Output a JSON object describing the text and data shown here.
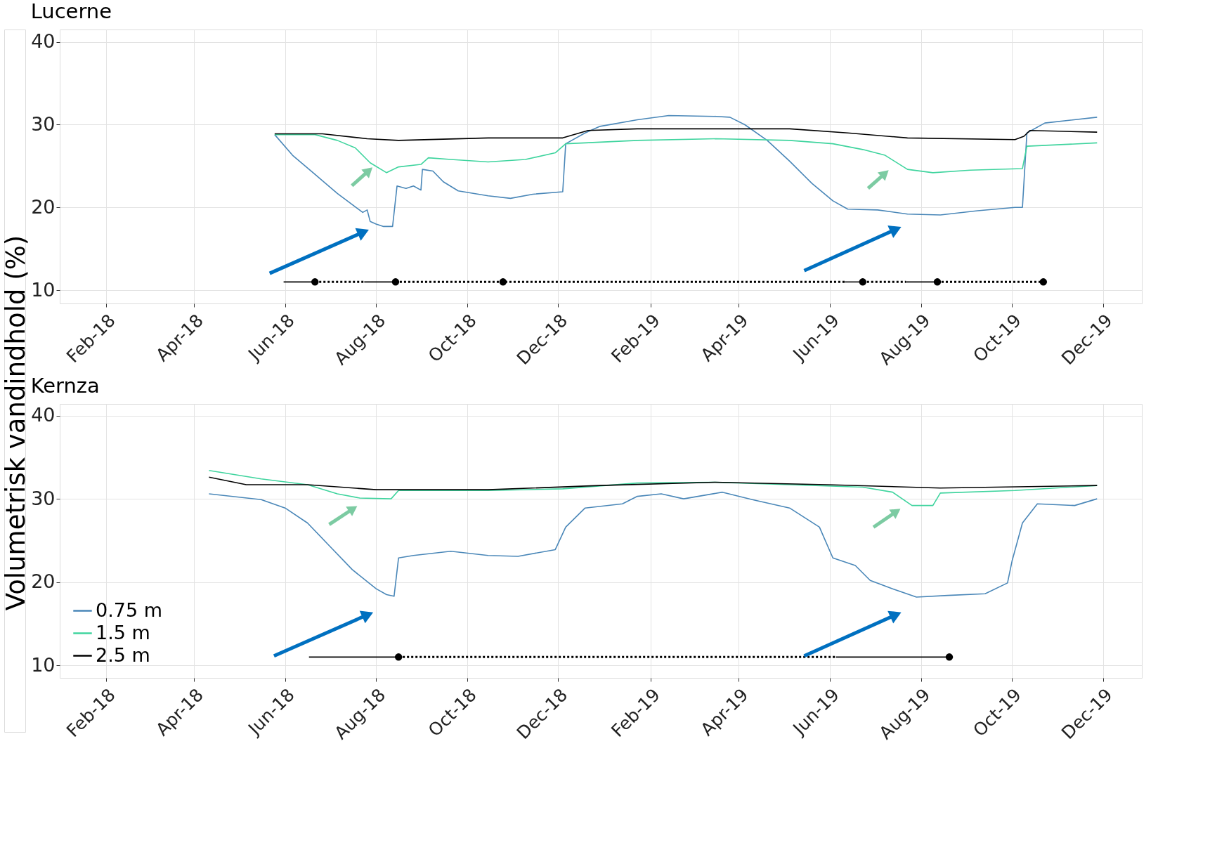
{
  "chart_data": [
    {
      "type": "line",
      "title": "Lucerne",
      "ylabel": "Volumetrisk vandindhold (%)",
      "xlim": [
        "2018-01-01",
        "2019-12-27"
      ],
      "ylim": [
        8.4,
        41.5
      ],
      "yticks": [
        10,
        20,
        30,
        40
      ],
      "xticks": [
        {
          "value": "2018-02-01",
          "label": "Feb-18"
        },
        {
          "value": "2018-04-01",
          "label": "Apr-18"
        },
        {
          "value": "2018-06-01",
          "label": "Jun-18"
        },
        {
          "value": "2018-08-01",
          "label": "Aug-18"
        },
        {
          "value": "2018-10-01",
          "label": "Oct-18"
        },
        {
          "value": "2018-12-01",
          "label": "Dec-18"
        },
        {
          "value": "2019-02-01",
          "label": "Feb-19"
        },
        {
          "value": "2019-04-01",
          "label": "Apr-19"
        },
        {
          "value": "2019-06-01",
          "label": "Jun-19"
        },
        {
          "value": "2019-08-01",
          "label": "Aug-19"
        },
        {
          "value": "2019-10-01",
          "label": "Oct-19"
        },
        {
          "value": "2019-12-01",
          "label": "Dec-19"
        }
      ],
      "grid": true,
      "legend": false,
      "series": [
        {
          "type": "line",
          "color": "#4a87b8",
          "line_style": "solid",
          "marker": "none",
          "x": [
            "2018-05-25",
            "2018-06-06",
            "2018-06-21",
            "2018-07-06",
            "2018-07-23",
            "2018-07-26",
            "2018-07-28",
            "2018-08-01",
            "2018-08-06",
            "2018-08-12",
            "2018-08-15",
            "2018-08-21",
            "2018-08-26",
            "2018-08-31",
            "2018-09-01",
            "2018-09-08",
            "2018-09-15",
            "2018-09-25",
            "2018-10-15",
            "2018-10-30",
            "2018-11-14",
            "2018-12-04",
            "2018-12-06",
            "2018-12-19",
            "2018-12-29",
            "2019-01-23",
            "2019-02-13",
            "2019-03-17",
            "2019-03-26",
            "2019-04-05",
            "2019-04-20",
            "2019-05-05",
            "2019-05-20",
            "2019-06-03",
            "2019-06-13",
            "2019-07-03",
            "2019-07-23",
            "2019-08-14",
            "2019-09-08",
            "2019-10-03",
            "2019-10-08",
            "2019-10-11",
            "2019-10-23",
            "2019-11-27"
          ],
          "values": [
            28.8,
            26.3,
            24.0,
            21.7,
            19.4,
            19.7,
            18.3,
            18.0,
            17.7,
            17.7,
            22.6,
            22.3,
            22.6,
            22.1,
            24.6,
            24.4,
            23.1,
            22.0,
            21.4,
            21.1,
            21.6,
            21.9,
            27.7,
            29.0,
            29.8,
            30.6,
            31.1,
            31.0,
            30.9,
            30.0,
            28.1,
            25.6,
            22.9,
            20.8,
            19.8,
            19.7,
            19.2,
            19.1,
            19.6,
            20.0,
            20.0,
            29.0,
            30.2,
            30.9
          ]
        },
        {
          "type": "line",
          "color": "#3fd49e",
          "line_style": "solid",
          "marker": "none",
          "x": [
            "2018-05-25",
            "2018-06-21",
            "2018-07-06",
            "2018-07-18",
            "2018-07-28",
            "2018-08-08",
            "2018-08-16",
            "2018-08-31",
            "2018-09-05",
            "2018-09-20",
            "2018-10-15",
            "2018-11-09",
            "2018-11-29",
            "2018-12-06",
            "2018-12-19",
            "2019-01-23",
            "2019-03-17",
            "2019-05-05",
            "2019-06-03",
            "2019-06-23",
            "2019-07-08",
            "2019-07-23",
            "2019-08-09",
            "2019-09-03",
            "2019-10-08",
            "2019-10-11",
            "2019-11-27"
          ],
          "values": [
            28.8,
            28.8,
            28.1,
            27.2,
            25.4,
            24.2,
            24.9,
            25.2,
            26.0,
            25.8,
            25.5,
            25.8,
            26.6,
            27.7,
            27.8,
            28.1,
            28.3,
            28.1,
            27.7,
            27.0,
            26.3,
            24.6,
            24.2,
            24.5,
            24.7,
            27.4,
            27.8
          ]
        },
        {
          "type": "line",
          "color": "#000000",
          "line_style": "solid",
          "marker": "none",
          "x": [
            "2018-05-25",
            "2018-06-26",
            "2018-07-26",
            "2018-08-16",
            "2018-10-15",
            "2018-12-04",
            "2018-12-21",
            "2019-01-23",
            "2019-05-05",
            "2019-06-13",
            "2019-07-23",
            "2019-10-03",
            "2019-10-09",
            "2019-10-13",
            "2019-11-27"
          ],
          "values": [
            28.9,
            28.9,
            28.3,
            28.1,
            28.4,
            28.4,
            29.3,
            29.5,
            29.5,
            29.0,
            28.4,
            28.2,
            28.6,
            29.3,
            29.1
          ]
        },
        {
          "type": "line",
          "color": "#000000",
          "line_style": "solid",
          "marker": "none",
          "x": [
            "2018-05-31",
            "2018-06-21"
          ],
          "values": [
            11,
            11
          ]
        },
        {
          "type": "line",
          "color": "#000000",
          "line_style": "solid",
          "marker": "none",
          "x": [
            "2018-07-24",
            "2018-08-14"
          ],
          "values": [
            11,
            11
          ]
        },
        {
          "type": "line",
          "color": "#000000",
          "line_style": "solid",
          "marker": "none",
          "x": [
            "2019-06-11",
            "2019-06-23"
          ],
          "values": [
            11,
            11
          ]
        },
        {
          "type": "line",
          "color": "#000000",
          "line_style": "solid",
          "marker": "none",
          "x": [
            "2019-07-22",
            "2019-08-12"
          ],
          "values": [
            11,
            11
          ]
        },
        {
          "type": "line",
          "color": "#000000",
          "line_style": "dotted",
          "marker": "none",
          "x": [
            "2018-06-21",
            "2018-07-24"
          ],
          "values": [
            11,
            11
          ]
        },
        {
          "type": "line",
          "color": "#000000",
          "line_style": "dotted",
          "marker": "none",
          "x": [
            "2018-08-14",
            "2018-10-25",
            "2019-06-11"
          ],
          "values": [
            11,
            11,
            11
          ]
        },
        {
          "type": "line",
          "color": "#000000",
          "line_style": "dotted",
          "marker": "none",
          "x": [
            "2019-06-23",
            "2019-07-22"
          ],
          "values": [
            11,
            11
          ]
        },
        {
          "type": "line",
          "color": "#000000",
          "line_style": "dotted",
          "marker": "none",
          "x": [
            "2019-08-12",
            "2019-10-22"
          ],
          "values": [
            11,
            11
          ]
        },
        {
          "type": "scatter",
          "color": "#000000",
          "marker": "circle",
          "x": [
            "2018-06-21",
            "2018-08-14",
            "2018-10-25",
            "2019-06-23",
            "2019-08-12",
            "2019-10-22"
          ],
          "values": [
            11,
            11,
            11,
            11,
            11,
            11
          ]
        }
      ]
    },
    {
      "type": "line",
      "title": "Kernza",
      "xlim": [
        "2018-01-01",
        "2019-12-27"
      ],
      "ylim": [
        8.5,
        41.4
      ],
      "yticks": [
        10,
        20,
        30,
        40
      ],
      "xticks": [
        {
          "value": "2018-02-01",
          "label": "Feb-18"
        },
        {
          "value": "2018-04-01",
          "label": "Apr-18"
        },
        {
          "value": "2018-06-01",
          "label": "Jun-18"
        },
        {
          "value": "2018-08-01",
          "label": "Aug-18"
        },
        {
          "value": "2018-10-01",
          "label": "Oct-18"
        },
        {
          "value": "2018-12-01",
          "label": "Dec-18"
        },
        {
          "value": "2019-02-01",
          "label": "Feb-19"
        },
        {
          "value": "2019-04-01",
          "label": "Apr-19"
        },
        {
          "value": "2019-06-01",
          "label": "Jun-19"
        },
        {
          "value": "2019-08-01",
          "label": "Aug-19"
        },
        {
          "value": "2019-10-01",
          "label": "Oct-19"
        },
        {
          "value": "2019-12-01",
          "label": "Dec-19"
        }
      ],
      "grid": true,
      "legend": "bottom left",
      "series": [
        {
          "type": "line",
          "name": "0.75 m",
          "color": "#4a87b8",
          "line_style": "solid",
          "marker": "none",
          "x": [
            "2018-04-11",
            "2018-05-16",
            "2018-06-01",
            "2018-06-16",
            "2018-07-01",
            "2018-07-16",
            "2018-08-01",
            "2018-08-08",
            "2018-08-13",
            "2018-08-16",
            "2018-08-26",
            "2018-09-20",
            "2018-10-15",
            "2018-11-04",
            "2018-11-29",
            "2018-12-06",
            "2018-12-19",
            "2019-01-13",
            "2019-01-23",
            "2019-02-08",
            "2019-02-23",
            "2019-03-21",
            "2019-04-10",
            "2019-05-05",
            "2019-05-25",
            "2019-06-03",
            "2019-06-18",
            "2019-06-28",
            "2019-07-13",
            "2019-07-29",
            "2019-08-19",
            "2019-09-13",
            "2019-09-28",
            "2019-10-01",
            "2019-10-08",
            "2019-10-18",
            "2019-11-12",
            "2019-11-27"
          ],
          "values": [
            30.6,
            29.9,
            28.9,
            27.1,
            24.3,
            21.5,
            19.2,
            18.5,
            18.3,
            22.9,
            23.2,
            23.7,
            23.2,
            23.1,
            23.9,
            26.6,
            28.9,
            29.4,
            30.3,
            30.6,
            30.0,
            30.8,
            29.9,
            28.9,
            26.6,
            22.9,
            22.0,
            20.2,
            19.2,
            18.2,
            18.4,
            18.6,
            19.9,
            22.5,
            27.1,
            29.4,
            29.2,
            30.0
          ]
        },
        {
          "type": "line",
          "name": "1.5 m",
          "color": "#3fd49e",
          "line_style": "solid",
          "marker": "none",
          "x": [
            "2018-04-11",
            "2018-05-16",
            "2018-06-16",
            "2018-07-06",
            "2018-07-21",
            "2018-08-11",
            "2018-08-16",
            "2018-10-15",
            "2018-12-04",
            "2019-01-23",
            "2019-03-16",
            "2019-05-05",
            "2019-06-23",
            "2019-07-13",
            "2019-07-26",
            "2019-08-09",
            "2019-08-14",
            "2019-10-03",
            "2019-11-27"
          ],
          "values": [
            33.4,
            32.4,
            31.7,
            30.6,
            30.1,
            30.0,
            31.0,
            31.0,
            31.2,
            31.9,
            32.0,
            31.7,
            31.4,
            30.8,
            29.2,
            29.2,
            30.7,
            31.0,
            31.6
          ]
        },
        {
          "type": "line",
          "name": "2.5 m",
          "color": "#000000",
          "line_style": "solid",
          "marker": "none",
          "x": [
            "2018-04-11",
            "2018-05-06",
            "2018-06-16",
            "2018-08-01",
            "2018-10-15",
            "2018-12-29",
            "2019-03-16",
            "2019-05-30",
            "2019-08-14",
            "2019-11-27"
          ],
          "values": [
            32.6,
            31.7,
            31.7,
            31.1,
            31.1,
            31.6,
            32.0,
            31.7,
            31.3,
            31.6
          ]
        },
        {
          "type": "line",
          "color": "#000000",
          "line_style": "solid",
          "marker": "none",
          "x": [
            "2018-06-17",
            "2018-08-16"
          ],
          "values": [
            11,
            11
          ]
        },
        {
          "type": "line",
          "color": "#000000",
          "line_style": "solid",
          "marker": "none",
          "x": [
            "2019-06-05",
            "2019-08-20"
          ],
          "values": [
            11,
            11
          ]
        },
        {
          "type": "line",
          "color": "#000000",
          "line_style": "dotted",
          "marker": "none",
          "x": [
            "2018-08-16",
            "2019-06-05"
          ],
          "values": [
            11,
            11
          ]
        },
        {
          "type": "scatter",
          "color": "#000000",
          "marker": "circle",
          "x": [
            "2018-08-16",
            "2019-08-20"
          ],
          "values": [
            11,
            11
          ]
        }
      ]
    }
  ]
}
